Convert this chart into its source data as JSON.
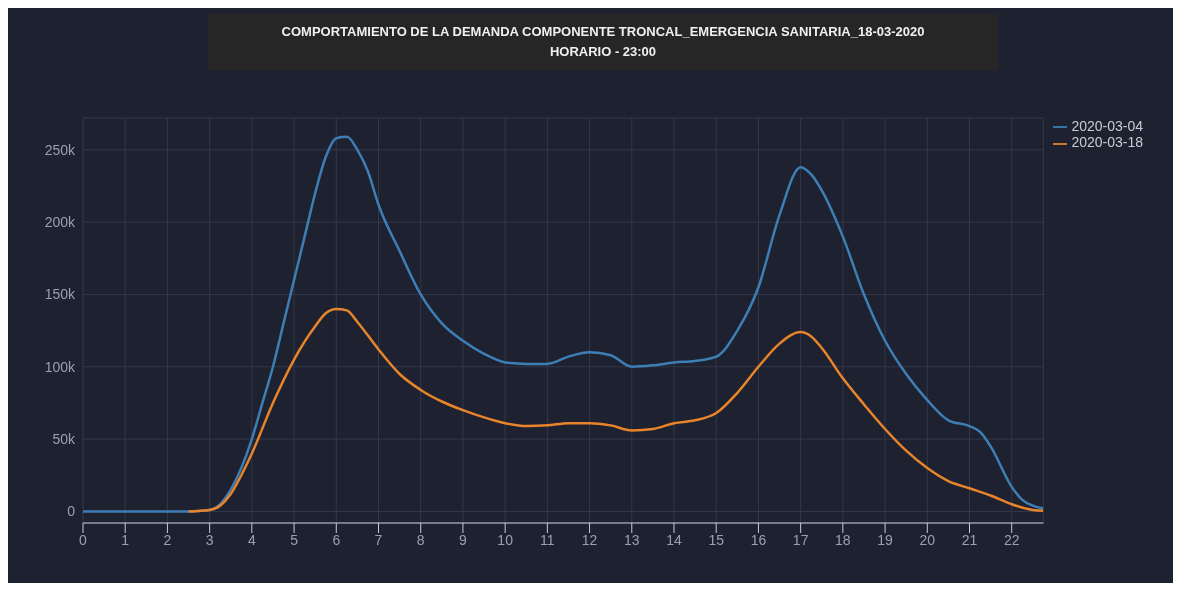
{
  "chart_data": {
    "type": "line",
    "title": "COMPORTAMIENTO DE LA DEMANDA COMPONENTE TRONCAL_EMERGENCIA SANITARIA_18-03-2020",
    "subtitle": "HORARIO - 23:00",
    "xlim": [
      0,
      22.75
    ],
    "xticks": [
      0,
      1,
      2,
      3,
      4,
      5,
      6,
      7,
      8,
      9,
      10,
      11,
      12,
      13,
      14,
      15,
      16,
      17,
      18,
      19,
      20,
      21,
      22
    ],
    "ylim": [
      -8000,
      272000
    ],
    "yticks": [
      0,
      {
        "value": 50000,
        "label": "50k"
      },
      {
        "value": 100000,
        "label": "100k"
      },
      {
        "value": 150000,
        "label": "150k"
      },
      {
        "value": 200000,
        "label": "200k"
      },
      {
        "value": 250000,
        "label": "250k"
      }
    ],
    "grid": true,
    "legend": "top right",
    "marker": "none",
    "line_style": "solid",
    "series": [
      {
        "name": "2020-03-04",
        "color": "#3d7fb5",
        "x": [
          0,
          2.5,
          3,
          3.25,
          3.5,
          3.75,
          4,
          4.25,
          4.5,
          4.75,
          5,
          5.25,
          5.5,
          5.75,
          6,
          6.25,
          6.5,
          6.75,
          7,
          7.5,
          8,
          8.5,
          9,
          9.5,
          10,
          10.5,
          11,
          11.5,
          12,
          12.5,
          13,
          13.5,
          14,
          14.5,
          15,
          15.5,
          16,
          16.5,
          17,
          17.25,
          17.5,
          18,
          18.5,
          19,
          19.5,
          20,
          20.5,
          21,
          21.25,
          21.5,
          22,
          22.25,
          22.5,
          22.75
        ],
        "values": [
          0,
          0,
          1000,
          5000,
          15000,
          30000,
          50000,
          75000,
          100000,
          130000,
          160000,
          190000,
          220000,
          245000,
          258000,
          259000,
          250000,
          235000,
          212000,
          180000,
          150000,
          130000,
          118000,
          109000,
          103000,
          102000,
          102000,
          107000,
          110000,
          108000,
          100000,
          101000,
          103000,
          104000,
          107000,
          125000,
          155000,
          205000,
          238000,
          233000,
          222000,
          190000,
          150000,
          118000,
          95000,
          77000,
          63000,
          59000,
          55000,
          45000,
          17000,
          8000,
          4000,
          2000
        ]
      },
      {
        "name": "2020-03-18",
        "color": "#e8842a",
        "x": [
          2.5,
          3,
          3.25,
          3.5,
          3.75,
          4,
          4.5,
          5,
          5.5,
          5.75,
          6,
          6.25,
          6.5,
          7,
          7.5,
          8,
          8.5,
          9,
          9.5,
          10,
          10.5,
          11,
          11.5,
          12,
          12.5,
          13,
          13.5,
          14,
          14.5,
          15,
          15.5,
          16,
          16.5,
          17,
          17.25,
          17.5,
          18,
          18.5,
          19,
          19.5,
          20,
          20.5,
          21,
          21.5,
          22,
          22.5,
          22.75
        ],
        "values": [
          0,
          1000,
          4000,
          12000,
          25000,
          40000,
          75000,
          105000,
          128000,
          137000,
          140000,
          139000,
          131000,
          112000,
          95000,
          84000,
          76000,
          70000,
          65000,
          61000,
          59000,
          59500,
          61000,
          61000,
          59500,
          56000,
          57000,
          61000,
          63000,
          68000,
          82000,
          100000,
          116000,
          124000,
          121000,
          113000,
          92000,
          74000,
          57000,
          42000,
          30000,
          21000,
          16000,
          11000,
          5000,
          1000,
          500
        ]
      }
    ]
  }
}
